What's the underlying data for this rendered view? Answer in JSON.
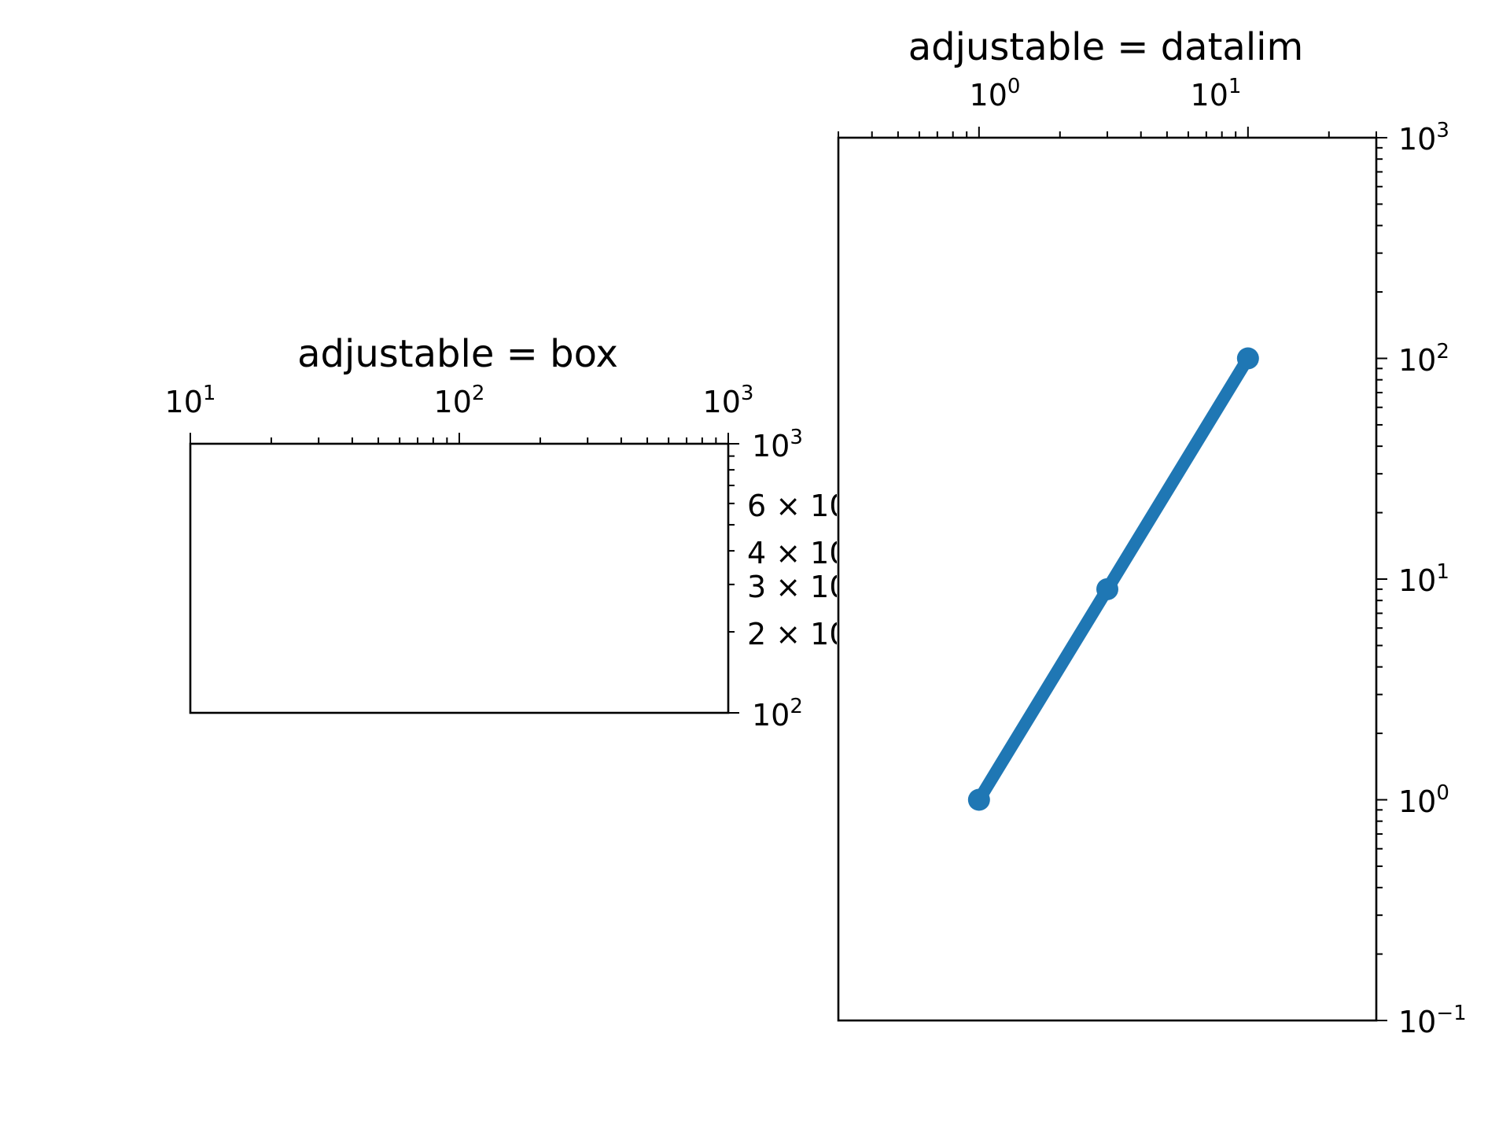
{
  "chart_data": [
    {
      "type": "line",
      "title": "adjustable = box",
      "x_scale": "log",
      "y_scale": "log",
      "xlim": [
        10,
        1000
      ],
      "ylim": [
        100,
        1000
      ],
      "x_tick_position": "top",
      "y_tick_position": "right",
      "x_major_ticks": [
        {
          "base": "10",
          "exp": "1"
        },
        {
          "base": "10",
          "exp": "2"
        },
        {
          "base": "10",
          "exp": "3"
        }
      ],
      "y_major_ticks": [
        {
          "base": "10",
          "exp": "3"
        },
        {
          "base": "10",
          "exp": "2"
        }
      ],
      "y_minor_labels": [
        "6 × 10",
        "4 × 10",
        "3 × 10",
        "2 × 10"
      ],
      "series": []
    },
    {
      "type": "line",
      "title": "adjustable = datalim",
      "x_scale": "log",
      "y_scale": "log",
      "xlim": [
        0.3,
        30
      ],
      "ylim": [
        0.1,
        1000
      ],
      "x_tick_position": "top",
      "y_tick_position": "right",
      "x_major_ticks": [
        {
          "base": "10",
          "exp": "0"
        },
        {
          "base": "10",
          "exp": "1"
        }
      ],
      "y_major_ticks": [
        {
          "base": "10",
          "exp": "3"
        },
        {
          "base": "10",
          "exp": "2"
        },
        {
          "base": "10",
          "exp": "1"
        },
        {
          "base": "10",
          "exp": "0"
        },
        {
          "base": "10",
          "exp": "−1"
        }
      ],
      "series": [
        {
          "color": "#1f77b4",
          "marker": "circle",
          "x": [
            1,
            3,
            10
          ],
          "y": [
            1,
            9,
            100
          ]
        }
      ]
    }
  ]
}
